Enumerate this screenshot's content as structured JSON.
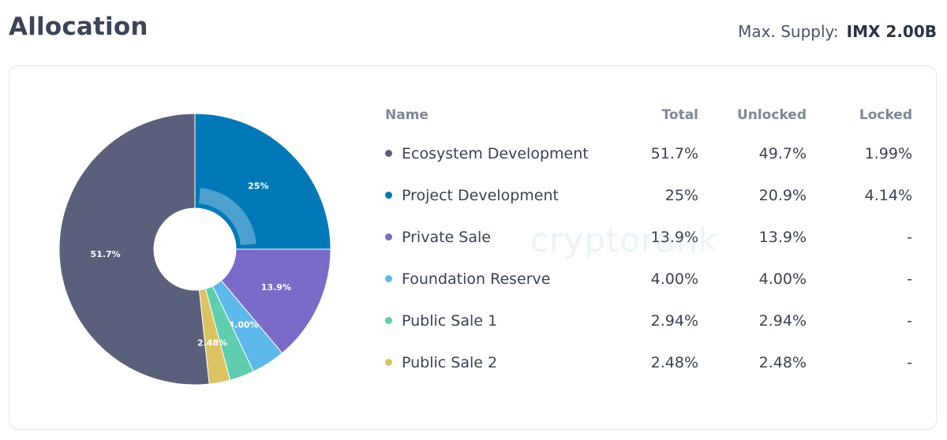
{
  "header": {
    "title": "Allocation",
    "max_supply_label": "Max. Supply:",
    "max_supply_value": "IMX 2.00B"
  },
  "table": {
    "headers": {
      "name": "Name",
      "total": "Total",
      "unlocked": "Unlocked",
      "locked": "Locked"
    },
    "rows": [
      {
        "name": "Ecosystem Development",
        "total": "51.7%",
        "unlocked": "49.7%",
        "locked": "1.99%",
        "color": "#5a607c"
      },
      {
        "name": "Project Development",
        "total": "25%",
        "unlocked": "20.9%",
        "locked": "4.14%",
        "color": "#0179b9"
      },
      {
        "name": "Private Sale",
        "total": "13.9%",
        "unlocked": "13.9%",
        "locked": "-",
        "color": "#7b6bc8"
      },
      {
        "name": "Foundation Reserve",
        "total": "4.00%",
        "unlocked": "4.00%",
        "locked": "-",
        "color": "#5db8ec"
      },
      {
        "name": "Public Sale 1",
        "total": "2.94%",
        "unlocked": "2.94%",
        "locked": "-",
        "color": "#5fceae"
      },
      {
        "name": "Public Sale 2",
        "total": "2.48%",
        "unlocked": "2.48%",
        "locked": "-",
        "color": "#dcc362"
      }
    ]
  },
  "watermark": "cryptorank",
  "chart_data": {
    "type": "pie",
    "categories": [
      "Ecosystem Development",
      "Project Development",
      "Private Sale",
      "Foundation Reserve",
      "Public Sale 1",
      "Public Sale 2"
    ],
    "values": [
      51.7,
      25,
      13.9,
      4.0,
      2.94,
      2.48
    ],
    "data_labels": [
      "51.7%",
      "25%",
      "13.9%",
      "4.00%",
      "",
      "2.48%"
    ],
    "colors": [
      "#5a607c",
      "#0179b9",
      "#7b6bc8",
      "#5db8ec",
      "#5fceae",
      "#dcc362"
    ],
    "donut": true,
    "title": "",
    "xlabel": "",
    "ylabel": ""
  }
}
